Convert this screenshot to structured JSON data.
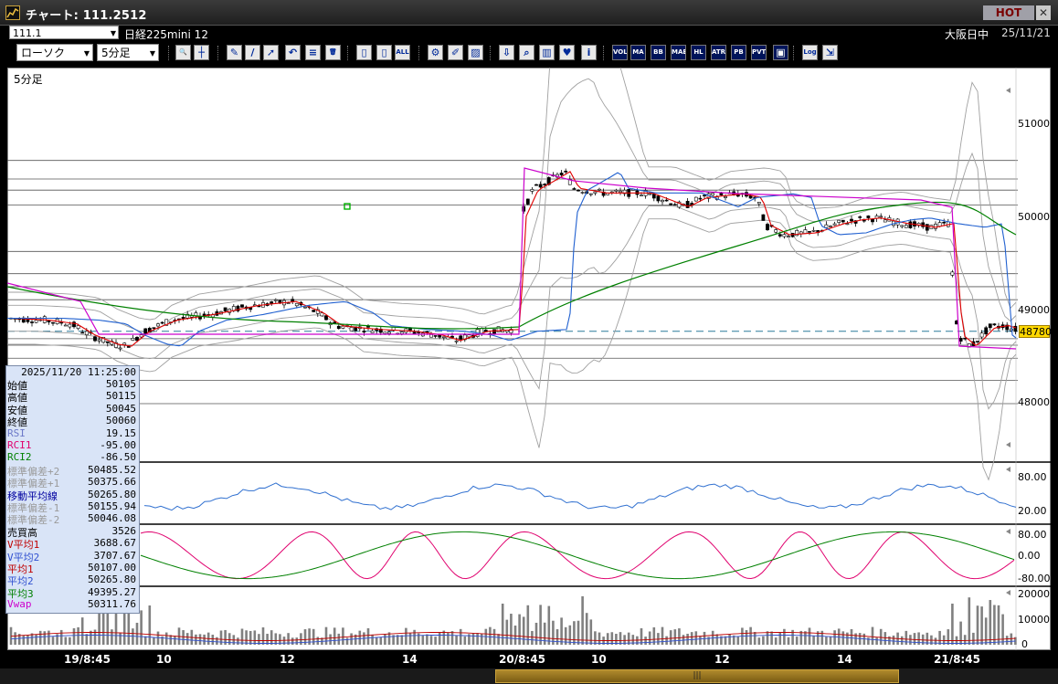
{
  "window": {
    "title": "チャート: 111.2512",
    "hot_label": "HOT",
    "close_label": "✕",
    "icon": "chart-app-icon"
  },
  "header": {
    "symbol_code": "111.1",
    "instrument": "日経225mini 12",
    "market_status": "大阪日中",
    "date": "25/11/21"
  },
  "toolbar": {
    "chart_type": "ローソク",
    "timeframe": "5分足",
    "buttons": [
      {
        "name": "zoom-icon",
        "label": "🔍"
      },
      {
        "name": "crosshair-icon",
        "label": "┼"
      },
      {
        "name": "pen-icon",
        "label": "✎"
      },
      {
        "name": "trendline-icon",
        "label": "/"
      },
      {
        "name": "cursor-icon",
        "label": "➚"
      },
      {
        "name": "undo-icon",
        "label": "↶"
      },
      {
        "name": "note-icon",
        "label": "≡"
      },
      {
        "name": "trash-icon",
        "label": "🗑"
      },
      {
        "name": "candle-red-icon",
        "label": "▯"
      },
      {
        "name": "candle-single-icon",
        "label": "▯"
      },
      {
        "name": "all-label",
        "label": "ALL"
      },
      {
        "name": "settings-icon",
        "label": "⚙"
      },
      {
        "name": "brush-icon",
        "label": "✐"
      },
      {
        "name": "color-icon",
        "label": "▨"
      },
      {
        "name": "download-icon",
        "label": "⇩"
      },
      {
        "name": "search-chart-icon",
        "label": "⌕"
      },
      {
        "name": "bar-chart-icon",
        "label": "▥"
      },
      {
        "name": "heart-chart-icon",
        "label": "♥"
      },
      {
        "name": "info-icon",
        "label": "i"
      },
      {
        "name": "vol-icon",
        "label": "VOL"
      },
      {
        "name": "ma-icon",
        "label": "MA"
      },
      {
        "name": "bb-icon",
        "label": "BB"
      },
      {
        "name": "mae-icon",
        "label": "MAE"
      },
      {
        "name": "hl-icon",
        "label": "HL"
      },
      {
        "name": "atr-icon",
        "label": "ATR"
      },
      {
        "name": "pb-icon",
        "label": "PB"
      },
      {
        "name": "pvt-icon",
        "label": "PVT"
      },
      {
        "name": "window-icon",
        "label": "▣"
      },
      {
        "name": "log-icon",
        "label": "Log"
      },
      {
        "name": "export-icon",
        "label": "⇲"
      }
    ]
  },
  "chart": {
    "period_label": "5分足",
    "current_price": "48780",
    "price_axis": [
      "51000",
      "50000",
      "49000",
      "48000"
    ],
    "rsi_axis": [
      "80.00",
      "20.00"
    ],
    "rci_axis": [
      "80.00",
      "0.00",
      "-80.00"
    ],
    "vol_axis": [
      "20000",
      "10000",
      "0"
    ],
    "time_labels": [
      "19/8:45",
      "10",
      "12",
      "14",
      "20/8:45",
      "10",
      "12",
      "14",
      "21/8:45"
    ],
    "colors": {
      "candle_up": "#ffffff",
      "candle_down": "#000000",
      "ma_short": "#e00000",
      "ma_mid": "#2060d0",
      "ma_long": "#008000",
      "vwap": "#cc00cc",
      "bollinger": "#a0a0a0",
      "rsi": "#3070d0",
      "rci1": "#e0006e",
      "rci2": "#008000"
    }
  },
  "info_panel": {
    "datetime": "2025/11/20  11:25:00",
    "rows": [
      {
        "label": "始値",
        "value": "50105",
        "color": "#000000"
      },
      {
        "label": "高値",
        "value": "50115",
        "color": "#000000"
      },
      {
        "label": "安値",
        "value": "50045",
        "color": "#000000"
      },
      {
        "label": "終値",
        "value": "50060",
        "color": "#000000"
      },
      {
        "label": "RSI",
        "value": "19.15",
        "color": "#6b78c8"
      },
      {
        "label": "RCI1",
        "value": "-95.00",
        "color": "#e0006e"
      },
      {
        "label": "RCI2",
        "value": "-86.50",
        "color": "#008000"
      },
      {
        "label": "標準偏差+2",
        "value": "50485.52",
        "color": "#9a9a9a"
      },
      {
        "label": "標準偏差+1",
        "value": "50375.66",
        "color": "#9a9a9a"
      },
      {
        "label": "移動平均線",
        "value": "50265.80",
        "color": "#0000a0"
      },
      {
        "label": "標準偏差-1",
        "value": "50155.94",
        "color": "#9a9a9a"
      },
      {
        "label": "標準偏差-2",
        "value": "50046.08",
        "color": "#9a9a9a"
      },
      {
        "label": "売買高",
        "value": "3526",
        "color": "#000000"
      },
      {
        "label": "V平均1",
        "value": "3688.67",
        "color": "#c00000"
      },
      {
        "label": "V平均2",
        "value": "3707.67",
        "color": "#3050d0"
      },
      {
        "label": "平均1",
        "value": "50107.00",
        "color": "#c00000"
      },
      {
        "label": "平均2",
        "value": "50265.80",
        "color": "#3050d0"
      },
      {
        "label": "平均3",
        "value": "49395.27",
        "color": "#008000"
      },
      {
        "label": "Vwap",
        "value": "50311.76",
        "color": "#cc00cc"
      }
    ]
  }
}
